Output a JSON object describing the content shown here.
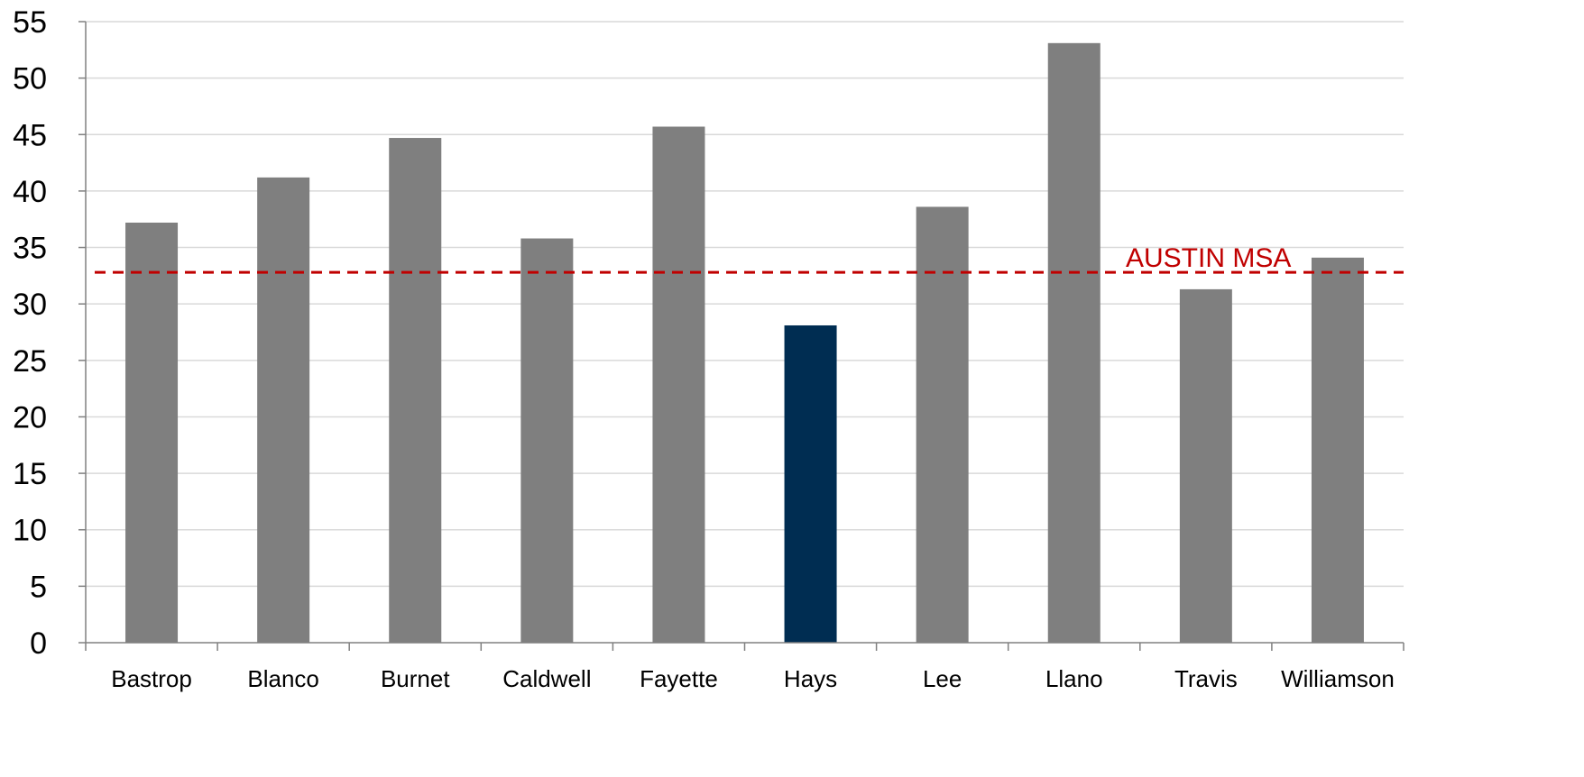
{
  "chart_data": {
    "type": "bar",
    "categories": [
      "Bastrop",
      "Blanco",
      "Burnet",
      "Caldwell",
      "Fayette",
      "Hays",
      "Lee",
      "Llano",
      "Travis",
      "Williamson"
    ],
    "values": [
      37.2,
      41.2,
      44.7,
      35.8,
      45.7,
      28.1,
      38.6,
      53.1,
      31.3,
      34.1
    ],
    "highlight": "Hays",
    "colors": {
      "bar": "#7f7f7f",
      "highlight": "#002d52",
      "reference": "#c00000",
      "grid": "#d9d9d9",
      "axis": "#808080"
    },
    "ylim": [
      0,
      55
    ],
    "yticks": [
      0,
      5,
      10,
      15,
      20,
      25,
      30,
      35,
      40,
      45,
      50,
      55
    ],
    "grid": true,
    "reference_line": {
      "label": "AUSTIN MSA",
      "value": 32.8,
      "style": "dashed"
    },
    "title": "",
    "xlabel": "",
    "ylabel": ""
  }
}
